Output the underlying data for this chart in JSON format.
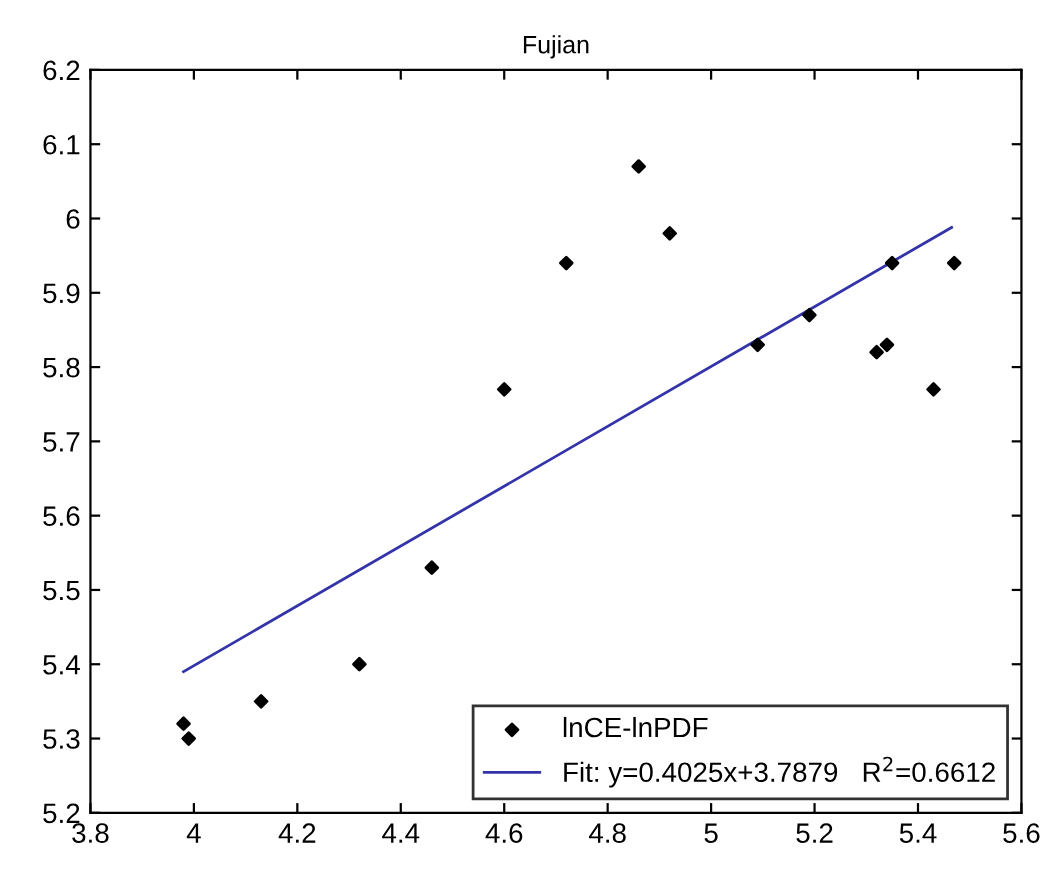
{
  "chart_data": {
    "type": "scatter",
    "title": "Fujian",
    "series": [
      {
        "name": "lnCE-lnPDF",
        "color": "#000000",
        "marker": "diamond",
        "x": [
          3.98,
          3.99,
          4.13,
          4.32,
          4.46,
          4.6,
          4.72,
          4.86,
          4.92,
          5.09,
          5.19,
          5.32,
          5.34,
          5.35,
          5.43,
          5.47
        ],
        "values": [
          5.32,
          5.3,
          5.35,
          5.4,
          5.53,
          5.77,
          5.94,
          6.07,
          5.98,
          5.83,
          5.87,
          5.82,
          5.83,
          5.94,
          5.77,
          5.94
        ]
      },
      {
        "name": "Fit: y=0.4025x+3.7879   R$^{2}$=0.6612",
        "type": "line",
        "color": "#3333aa",
        "marker": "none",
        "line_style": "solid",
        "x": [
          3.98,
          5.465
        ],
        "values": [
          5.39,
          5.988
        ]
      }
    ],
    "xlim": [
      3.8,
      5.6
    ],
    "xticks": [
      {
        "value": 3.8,
        "label": "3.8"
      },
      {
        "value": 4,
        "label": "4"
      },
      {
        "value": 4.2,
        "label": "4.2"
      },
      {
        "value": 4.4,
        "label": "4.4"
      },
      {
        "value": 4.6,
        "label": "4.6"
      },
      {
        "value": 4.8,
        "label": "4.8"
      },
      {
        "value": 5,
        "label": "5"
      },
      {
        "value": 5.2,
        "label": "5.2"
      },
      {
        "value": 5.4,
        "label": "5.4"
      },
      {
        "value": 5.6,
        "label": "5.6"
      }
    ],
    "ylim": [
      5.2,
      6.2
    ],
    "yticks": [
      {
        "value": 5.2,
        "label": "5.2"
      },
      {
        "value": 5.3,
        "label": "5.3"
      },
      {
        "value": 5.4,
        "label": "5.4"
      },
      {
        "value": 5.5,
        "label": "5.5"
      },
      {
        "value": 5.6,
        "label": "5.6"
      },
      {
        "value": 5.7,
        "label": "5.7"
      },
      {
        "value": 5.8,
        "label": "5.8"
      },
      {
        "value": 5.9,
        "label": "5.9"
      },
      {
        "value": 6,
        "label": "6"
      },
      {
        "value": 6.1,
        "label": "6.1"
      },
      {
        "value": 6.2,
        "label": "6.2"
      }
    ],
    "grid": false,
    "legend": "bottom right"
  }
}
